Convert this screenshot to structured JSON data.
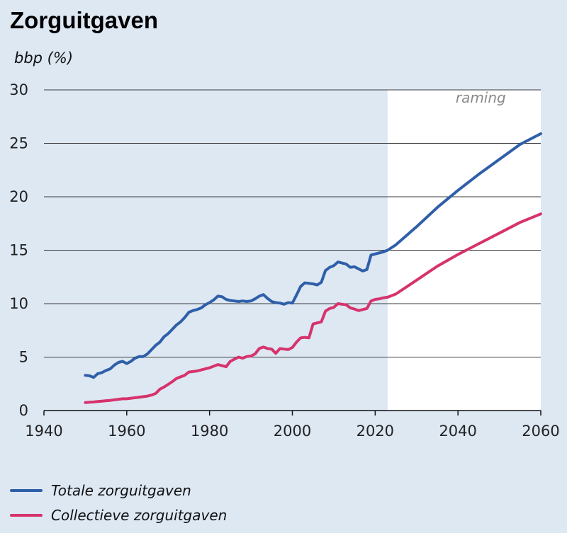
{
  "title": "Zorguitgaven",
  "colors": {
    "background": "#dde8f3",
    "forecast_band": "#ffffff",
    "total": "#2f5fa8",
    "collective": "#d6336c"
  },
  "chart_data": {
    "type": "line",
    "title": "Zorguitgaven",
    "xlabel": "",
    "ylabel": "bbp (%)",
    "xlim": [
      1940,
      2060
    ],
    "ylim": [
      0,
      30
    ],
    "xticks": [
      "1940",
      "1960",
      "1980",
      "2000",
      "2020",
      "2040",
      "2060"
    ],
    "yticks": [
      "0",
      "5",
      "10",
      "15",
      "20",
      "25",
      "30"
    ],
    "grid": "horizontal",
    "legend_position": "bottom-left",
    "annotation": {
      "text": "raming",
      "forecast_from": 2023,
      "forecast_to": 2060
    },
    "series": [
      {
        "name": "Totale zorguitgaven",
        "color": "#2f5fa8",
        "x": [
          1950,
          1951,
          1952,
          1953,
          1954,
          1955,
          1956,
          1957,
          1958,
          1959,
          1960,
          1961,
          1962,
          1963,
          1964,
          1965,
          1966,
          1967,
          1968,
          1969,
          1970,
          1971,
          1972,
          1973,
          1974,
          1975,
          1976,
          1977,
          1978,
          1979,
          1980,
          1981,
          1982,
          1983,
          1984,
          1985,
          1986,
          1987,
          1988,
          1989,
          1990,
          1991,
          1992,
          1993,
          1994,
          1995,
          1996,
          1997,
          1998,
          1999,
          2000,
          2001,
          2002,
          2003,
          2004,
          2005,
          2006,
          2007,
          2008,
          2009,
          2010,
          2011,
          2012,
          2013,
          2014,
          2015,
          2016,
          2017,
          2018,
          2019,
          2020,
          2021,
          2022,
          2023,
          2025,
          2030,
          2035,
          2040,
          2045,
          2050,
          2055,
          2060
        ],
        "values": [
          3.3,
          3.25,
          3.1,
          3.45,
          3.55,
          3.75,
          3.9,
          4.25,
          4.5,
          4.6,
          4.4,
          4.6,
          4.9,
          5.05,
          5.05,
          5.3,
          5.7,
          6.1,
          6.4,
          6.9,
          7.2,
          7.6,
          8.0,
          8.3,
          8.7,
          9.2,
          9.35,
          9.45,
          9.6,
          9.9,
          10.1,
          10.35,
          10.7,
          10.65,
          10.4,
          10.3,
          10.25,
          10.2,
          10.25,
          10.2,
          10.25,
          10.45,
          10.7,
          10.85,
          10.5,
          10.2,
          10.1,
          10.05,
          9.95,
          10.1,
          10.05,
          10.8,
          11.6,
          11.95,
          11.9,
          11.85,
          11.75,
          12.0,
          13.1,
          13.4,
          13.55,
          13.9,
          13.8,
          13.7,
          13.4,
          13.45,
          13.25,
          13.05,
          13.2,
          14.55,
          14.65,
          14.75,
          14.85,
          15.0,
          15.5,
          17.2,
          19.0,
          20.6,
          22.1,
          23.5,
          24.9,
          25.9
        ]
      },
      {
        "name": "Collectieve zorguitgaven",
        "color": "#d6336c",
        "x": [
          1950,
          1951,
          1952,
          1953,
          1954,
          1955,
          1956,
          1957,
          1958,
          1959,
          1960,
          1961,
          1962,
          1963,
          1964,
          1965,
          1966,
          1967,
          1968,
          1969,
          1970,
          1971,
          1972,
          1973,
          1974,
          1975,
          1976,
          1977,
          1978,
          1979,
          1980,
          1981,
          1982,
          1983,
          1984,
          1985,
          1986,
          1987,
          1988,
          1989,
          1990,
          1991,
          1992,
          1993,
          1994,
          1995,
          1996,
          1997,
          1998,
          1999,
          2000,
          2001,
          2002,
          2003,
          2004,
          2005,
          2006,
          2007,
          2008,
          2009,
          2010,
          2011,
          2012,
          2013,
          2014,
          2015,
          2016,
          2017,
          2018,
          2019,
          2020,
          2021,
          2022,
          2023,
          2025,
          2030,
          2035,
          2040,
          2045,
          2050,
          2055,
          2060
        ],
        "values": [
          0.75,
          0.78,
          0.8,
          0.85,
          0.88,
          0.92,
          0.95,
          1.0,
          1.05,
          1.1,
          1.1,
          1.15,
          1.2,
          1.25,
          1.3,
          1.35,
          1.45,
          1.6,
          2.0,
          2.2,
          2.45,
          2.7,
          3.0,
          3.15,
          3.3,
          3.6,
          3.65,
          3.7,
          3.8,
          3.9,
          4.0,
          4.15,
          4.3,
          4.2,
          4.1,
          4.6,
          4.8,
          5.0,
          4.9,
          5.05,
          5.1,
          5.3,
          5.8,
          5.95,
          5.8,
          5.75,
          5.35,
          5.8,
          5.75,
          5.7,
          5.9,
          6.4,
          6.8,
          6.85,
          6.8,
          8.1,
          8.2,
          8.3,
          9.3,
          9.55,
          9.65,
          10.0,
          9.95,
          9.9,
          9.6,
          9.5,
          9.35,
          9.45,
          9.55,
          10.25,
          10.4,
          10.45,
          10.55,
          10.6,
          10.9,
          12.2,
          13.5,
          14.6,
          15.6,
          16.6,
          17.6,
          18.4
        ]
      }
    ]
  }
}
